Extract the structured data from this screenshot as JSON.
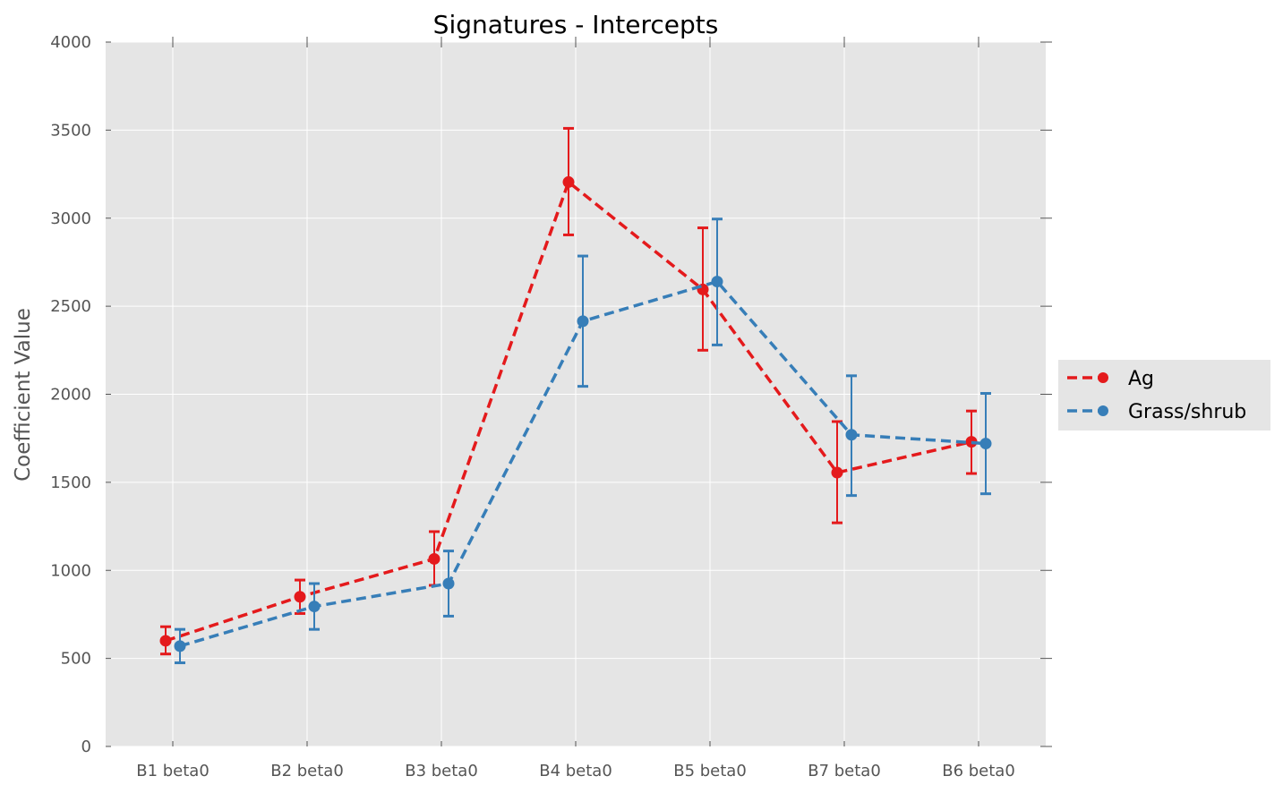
{
  "chart_data": {
    "type": "line",
    "title": "Signatures - Intercepts",
    "xlabel": "",
    "ylabel": "Coefficient Value",
    "categories": [
      "B1 beta0",
      "B2 beta0",
      "B3 beta0",
      "B4 beta0",
      "B5 beta0",
      "B7 beta0",
      "B6 beta0"
    ],
    "ylim": [
      0,
      4000
    ],
    "yticks": [
      0,
      500,
      1000,
      1500,
      2000,
      2500,
      3000,
      3500,
      4000
    ],
    "grid": true,
    "error_bars": true,
    "legend_position": "right",
    "series": [
      {
        "name": "Ag",
        "color": "#e41a1c",
        "values": [
          600,
          850,
          1065,
          3205,
          2595,
          1555,
          1730
        ],
        "error_low": [
          525,
          755,
          915,
          2905,
          2250,
          1270,
          1550
        ],
        "error_high": [
          680,
          945,
          1220,
          3510,
          2945,
          1845,
          1905
        ]
      },
      {
        "name": "Grass/shrub",
        "color": "#377eb8",
        "values": [
          570,
          795,
          925,
          2415,
          2640,
          1770,
          1720
        ],
        "error_low": [
          475,
          665,
          740,
          2045,
          2280,
          1425,
          1435
        ],
        "error_high": [
          665,
          925,
          1110,
          2785,
          2995,
          2105,
          2005
        ]
      }
    ]
  }
}
